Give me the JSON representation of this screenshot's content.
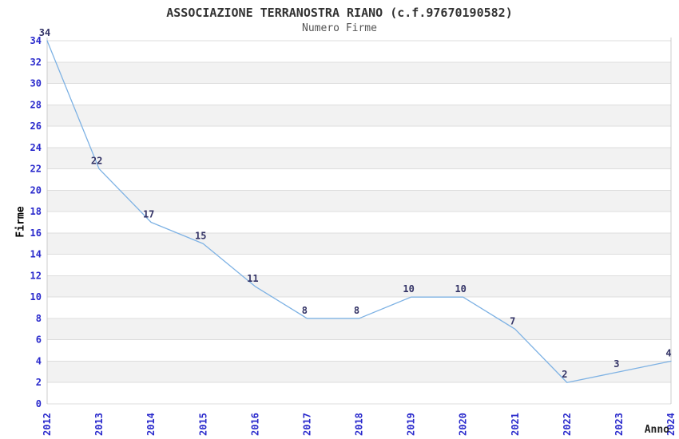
{
  "chart_data": {
    "type": "line",
    "title": "ASSOCIAZIONE TERRANOSTRA RIANO (c.f.97670190582)",
    "subtitle": "Numero Firme",
    "xlabel": "Anno",
    "ylabel": "Firme",
    "categories": [
      "2012",
      "2013",
      "2014",
      "2015",
      "2016",
      "2017",
      "2018",
      "2019",
      "2020",
      "2021",
      "2022",
      "2023",
      "2024"
    ],
    "values": [
      34,
      22,
      17,
      15,
      11,
      8,
      8,
      10,
      10,
      7,
      2,
      3,
      4
    ],
    "ylim": [
      0,
      34
    ],
    "ytick_step": 2,
    "grid": "horizontal-gridlines-with-alternating-bands",
    "legend": "none",
    "colors": {
      "line": "#7EB2E4",
      "tick_label": "#2929CC",
      "data_label": "#333366",
      "band": "#F2F2F2",
      "gridline": "#DDDDDD",
      "spine": "#CCCCCC",
      "title": "#333333",
      "subtitle": "#555555",
      "axis_label": "#000000",
      "background": "#FFFFFF"
    }
  }
}
